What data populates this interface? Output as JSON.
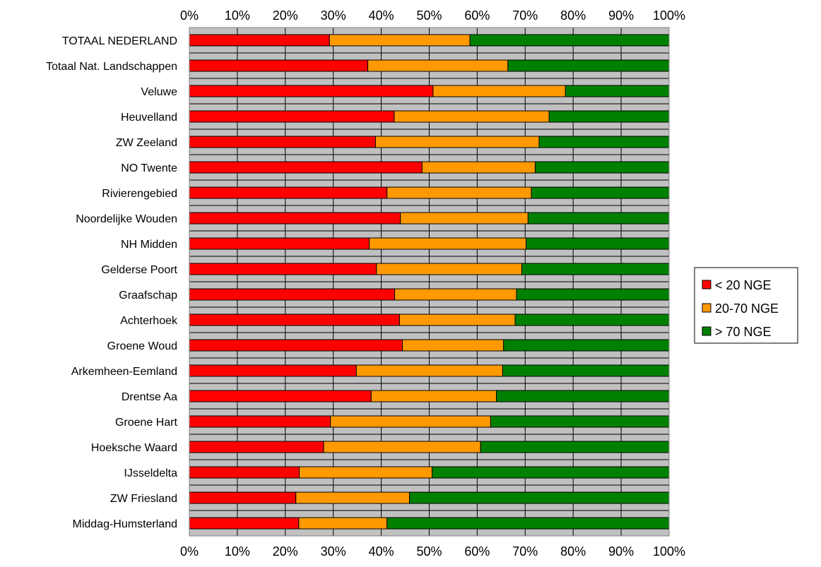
{
  "chart_data": {
    "type": "bar",
    "orientation": "horizontal",
    "stacked": "percent",
    "x_ticks": [
      "0%",
      "10%",
      "20%",
      "30%",
      "40%",
      "50%",
      "60%",
      "70%",
      "80%",
      "90%",
      "100%"
    ],
    "xlim": [
      0,
      100
    ],
    "grid": true,
    "legend_position": "right",
    "categories": [
      "TOTAAL NEDERLAND",
      "Totaal Nat. Landschappen",
      "Veluwe",
      "Heuvelland",
      "ZW Zeeland",
      "NO Twente",
      "Rivierengebied",
      "Noordelijke Wouden",
      "NH Midden",
      "Gelderse Poort",
      "Graafschap",
      "Achterhoek",
      "Groene Woud",
      "Arkemheen-Eemland",
      "Drentse Aa",
      "Groene Hart",
      "Hoeksche Waard",
      "IJsseldelta",
      "ZW Friesland",
      "Middag-Humsterland"
    ],
    "series": [
      {
        "name": "< 20 NGE",
        "color": "#ff0000",
        "values": [
          29.2,
          37.2,
          50.8,
          42.7,
          38.8,
          48.5,
          41.2,
          44.0,
          37.5,
          39.0,
          42.8,
          43.8,
          44.4,
          34.8,
          37.9,
          29.4,
          28.0,
          22.9,
          22.2,
          22.8
        ]
      },
      {
        "name": "20-70 NGE",
        "color": "#ff9900",
        "values": [
          29.3,
          29.2,
          27.6,
          32.3,
          34.1,
          23.6,
          30.1,
          26.6,
          32.7,
          30.3,
          25.4,
          24.1,
          21.1,
          30.5,
          26.1,
          33.4,
          32.7,
          27.7,
          23.7,
          18.4
        ]
      },
      {
        "name": "> 70 NGE",
        "color": "#008000",
        "values": [
          41.5,
          33.6,
          21.6,
          25.0,
          27.1,
          27.9,
          28.7,
          29.4,
          29.8,
          30.7,
          31.8,
          32.1,
          34.5,
          34.7,
          36.0,
          37.2,
          39.3,
          49.4,
          54.1,
          58.8
        ]
      }
    ]
  }
}
